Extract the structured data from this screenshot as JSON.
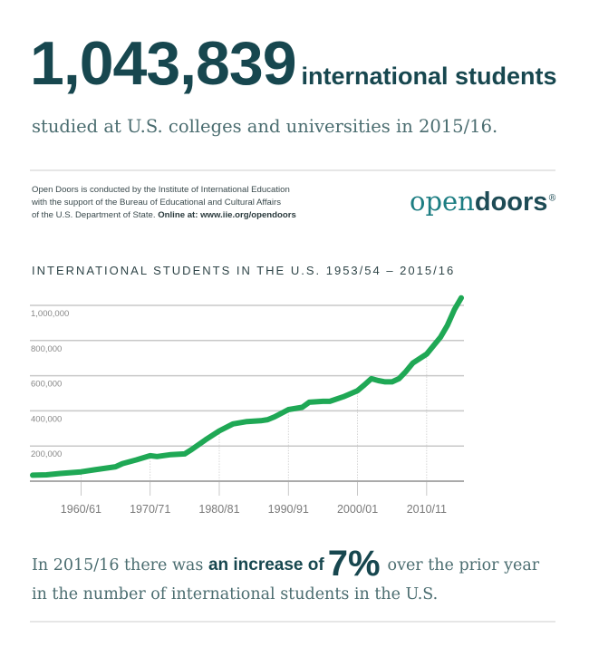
{
  "header": {
    "total": "1,043,839",
    "total_unit": "international students",
    "subtitle": "studied at U.S. colleges and universities in 2015/16."
  },
  "credit": {
    "line1": "Open Doors is conducted by the Institute of International Education",
    "line2": "with the support of the Bureau of Educational and Cultural Affairs",
    "line3": "of the U.S. Department of State.",
    "online": "Online at: www.iie.org/opendoors"
  },
  "logo": {
    "part1": "open",
    "part2": "doors",
    "mark": "®"
  },
  "footer": {
    "pre": "In 2015/16 there was",
    "bold": "an increase of",
    "pct": "7%",
    "post": "over the prior year",
    "line2": "in the number of international students in the U.S."
  },
  "colors": {
    "line": "#1fa855",
    "grid": "#c8c8c8",
    "text": "#17474f"
  },
  "chart_data": {
    "type": "line",
    "title": "INTERNATIONAL STUDENTS IN THE U.S. 1953/54 – 2015/16",
    "xlabel": "",
    "ylabel": "",
    "ylim": [
      0,
      1000000
    ],
    "xlim": [
      1953,
      2015
    ],
    "yticks": [
      {
        "v": 200000,
        "label": "200,000"
      },
      {
        "v": 400000,
        "label": "400,000"
      },
      {
        "v": 600000,
        "label": "600,000"
      },
      {
        "v": 800000,
        "label": "800,000"
      },
      {
        "v": 1000000,
        "label": "1,000,000"
      }
    ],
    "xticks": [
      {
        "v": 1960,
        "label": "1960/61"
      },
      {
        "v": 1970,
        "label": "1970/71"
      },
      {
        "v": 1980,
        "label": "1980/81"
      },
      {
        "v": 1990,
        "label": "1990/91"
      },
      {
        "v": 2000,
        "label": "2000/01"
      },
      {
        "v": 2010,
        "label": "2010/11"
      }
    ],
    "grid": true,
    "series": [
      {
        "name": "International students",
        "x": [
          1953,
          1955,
          1957,
          1960,
          1962,
          1965,
          1966,
          1968,
          1970,
          1971,
          1973,
          1975,
          1976,
          1978,
          1980,
          1982,
          1984,
          1986,
          1987,
          1988,
          1990,
          1992,
          1993,
          1995,
          1996,
          1998,
          2000,
          2001,
          2002,
          2003,
          2004,
          2005,
          2006,
          2007,
          2008,
          2010,
          2012,
          2013,
          2014,
          2015
        ],
        "values": [
          34000,
          36000,
          44000,
          53000,
          65000,
          82000,
          100000,
          121000,
          145000,
          140000,
          151000,
          155000,
          180000,
          235000,
          286000,
          326000,
          339000,
          344000,
          350000,
          366000,
          407000,
          420000,
          449000,
          454000,
          454000,
          481000,
          515000,
          548000,
          583000,
          572000,
          565000,
          565000,
          583000,
          624000,
          672000,
          723000,
          819000,
          886000,
          975000,
          1043000
        ]
      }
    ]
  }
}
